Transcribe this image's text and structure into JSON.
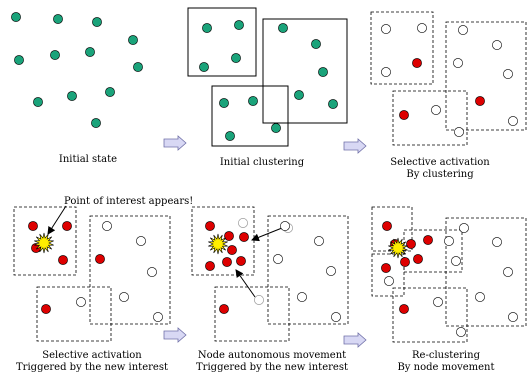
{
  "panels": [
    {
      "id": "p1",
      "caption": [
        "Initial state"
      ]
    },
    {
      "id": "p2",
      "caption": [
        "Initial clustering"
      ]
    },
    {
      "id": "p3",
      "caption": [
        "Selective activation",
        "By clustering"
      ]
    },
    {
      "id": "p4",
      "caption": [
        "Selective activation",
        "Triggered by the new interest"
      ]
    },
    {
      "id": "p5",
      "caption": [
        "Node autonomous movement",
        "Triggered by the new interest"
      ]
    },
    {
      "id": "p6",
      "caption": [
        "Re-clustering",
        "By node movement"
      ]
    }
  ],
  "annotation": "Point of interest appears!",
  "colors": {
    "node_default": "#1aa37a",
    "node_active": "#dd0000",
    "node_inactive": "#ffffff",
    "node_ghost": "#ffffff",
    "poi": "#ffee00",
    "arrow_fill": "#d8d8f4",
    "arrow_stroke": "#7070a8"
  }
}
